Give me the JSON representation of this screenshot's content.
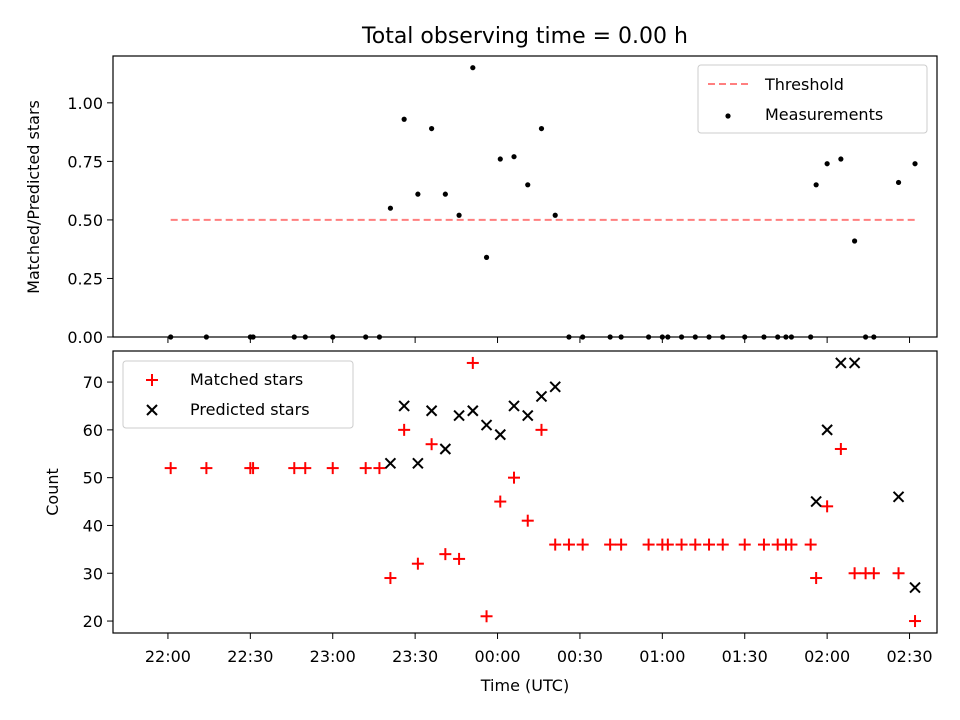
{
  "chart_data": {
    "type": "scatter",
    "title": "Total observing time = 0.00 h",
    "xlabel": "Time (UTC)",
    "x_range_minutes": [
      -20,
      280
    ],
    "x_ticks": [
      "22:00",
      "22:30",
      "23:00",
      "23:30",
      "00:00",
      "00:30",
      "01:00",
      "01:30",
      "02:00",
      "02:30"
    ],
    "x_tick_minutes": [
      0,
      30,
      60,
      90,
      120,
      150,
      180,
      210,
      240,
      270
    ],
    "panels": [
      {
        "ylabel": "Matched/Predicted stars",
        "ylim": [
          0,
          1.2
        ],
        "y_ticks": [
          0.0,
          0.25,
          0.5,
          0.75,
          1.0
        ],
        "y_tick_labels": [
          "0.00",
          "0.25",
          "0.50",
          "0.75",
          "1.00"
        ],
        "legend_position": "top-right",
        "series": [
          {
            "name": "Threshold",
            "kind": "line",
            "color": "#ff7f7f",
            "dash": true,
            "x_minutes": [
              1,
              272
            ],
            "y": [
              0.5,
              0.5
            ]
          },
          {
            "name": "Measurements",
            "kind": "dot",
            "color": "#000000",
            "x_minutes": [
              1,
              14,
              30,
              31,
              46,
              50,
              60,
              72,
              77,
              81,
              86,
              91,
              96,
              101,
              106,
              111,
              116,
              121,
              126,
              131,
              136,
              141,
              146,
              151,
              161,
              165,
              175,
              180,
              182,
              187,
              192,
              197,
              202,
              210,
              217,
              222,
              225,
              227,
              234,
              236,
              240,
              245,
              250,
              254,
              257,
              266,
              272
            ],
            "y": [
              0,
              0,
              0,
              0,
              0,
              0,
              0,
              0,
              0,
              0.55,
              0.93,
              0.61,
              0.89,
              0.61,
              0.52,
              1.15,
              0.34,
              0.76,
              0.77,
              0.65,
              0.89,
              0.52,
              0,
              0,
              0,
              0,
              0,
              0,
              0,
              0,
              0,
              0,
              0,
              0,
              0,
              0,
              0,
              0,
              0,
              0.65,
              0.74,
              0.76,
              0.41,
              0,
              0,
              0.66,
              0.74
            ]
          }
        ]
      },
      {
        "ylabel": "Count",
        "ylim": [
          17.5,
          76.5
        ],
        "y_ticks": [
          20,
          30,
          40,
          50,
          60,
          70
        ],
        "y_tick_labels": [
          "20",
          "30",
          "40",
          "50",
          "60",
          "70"
        ],
        "legend_position": "top-left",
        "series": [
          {
            "name": "Matched stars",
            "kind": "plus",
            "color": "#ff0000",
            "x_minutes": [
              1,
              14,
              30,
              31,
              46,
              50,
              60,
              72,
              77,
              81,
              86,
              91,
              96,
              101,
              106,
              111,
              116,
              121,
              126,
              131,
              136,
              141,
              146,
              151,
              161,
              165,
              175,
              180,
              182,
              187,
              192,
              197,
              202,
              210,
              217,
              222,
              225,
              227,
              234,
              236,
              240,
              245,
              250,
              254,
              257,
              266,
              272
            ],
            "y": [
              52,
              52,
              52,
              52,
              52,
              52,
              52,
              52,
              52,
              29,
              60,
              32,
              57,
              34,
              33,
              74,
              21,
              45,
              50,
              41,
              60,
              36,
              36,
              36,
              36,
              36,
              36,
              36,
              36,
              36,
              36,
              36,
              36,
              36,
              36,
              36,
              36,
              36,
              36,
              29,
              44,
              56,
              30,
              30,
              30,
              30,
              20
            ]
          },
          {
            "name": "Predicted stars",
            "kind": "cross",
            "color": "#000000",
            "x_minutes": [
              81,
              86,
              91,
              96,
              101,
              106,
              111,
              116,
              121,
              126,
              131,
              136,
              141,
              236,
              240,
              245,
              250,
              266,
              272
            ],
            "y": [
              53,
              65,
              53,
              64,
              56,
              63,
              64,
              61,
              59,
              65,
              63,
              67,
              69,
              45,
              60,
              74,
              74,
              46,
              27
            ]
          }
        ]
      }
    ]
  }
}
